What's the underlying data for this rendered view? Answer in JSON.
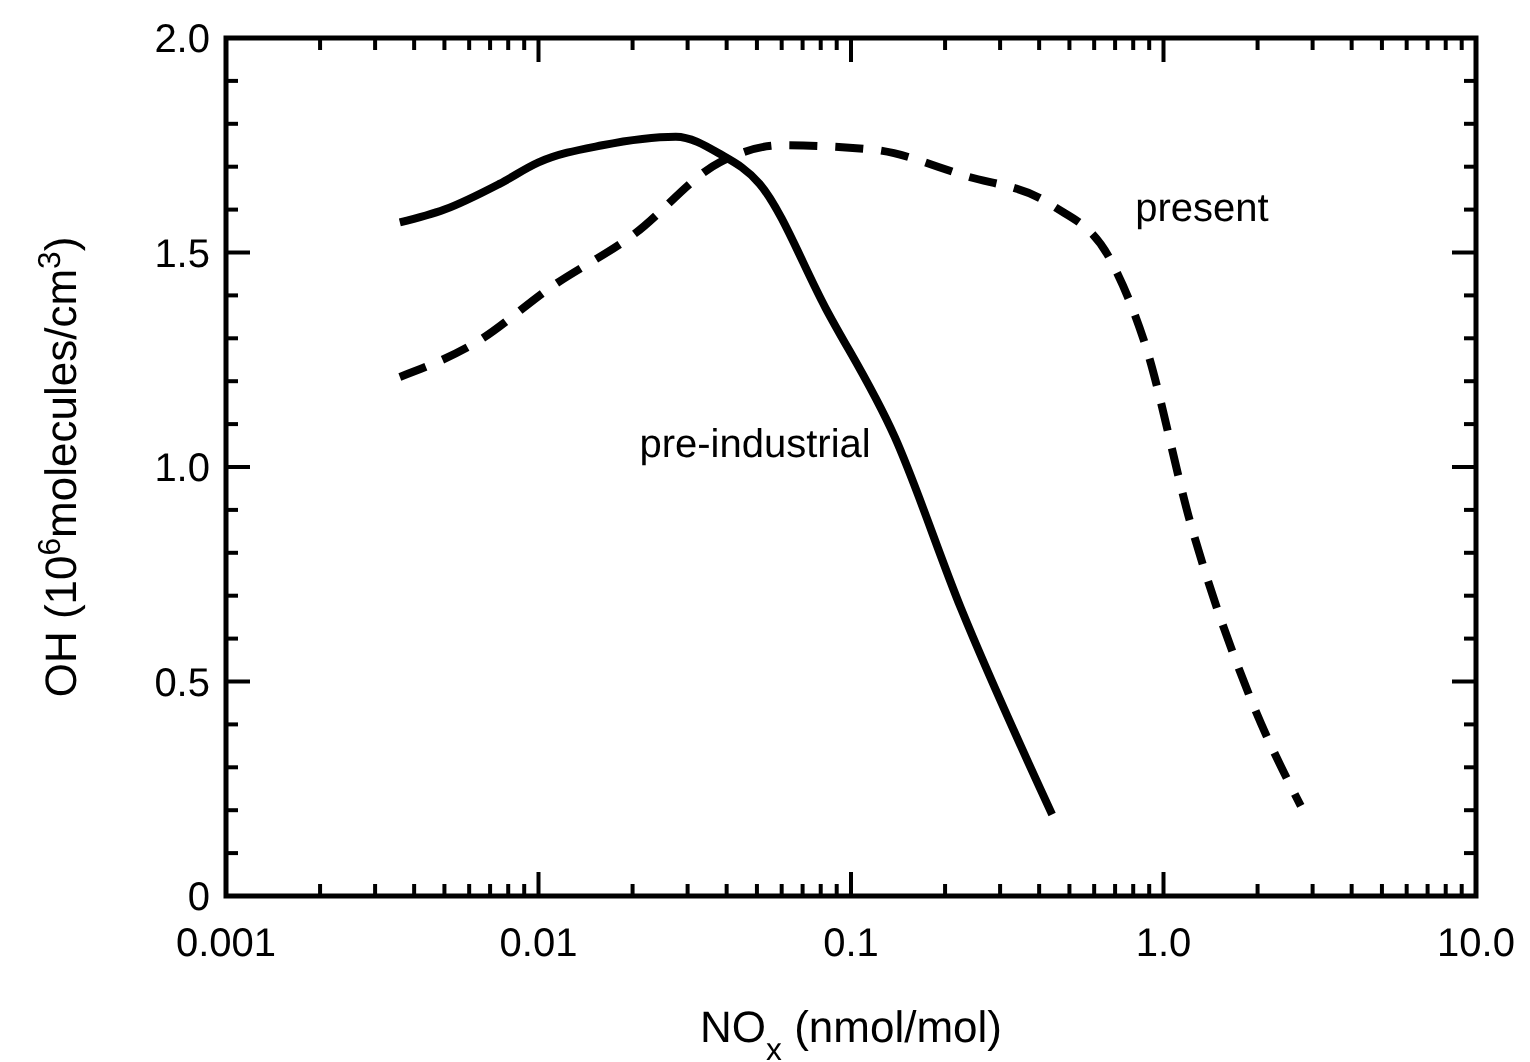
{
  "chart_data": {
    "type": "line",
    "xlabel": "NO$_{x}$ (nmol/mol)",
    "ylabel": "OH (10$^{6}$molecules/cm$^{3}$)",
    "log": "x",
    "xlim": [
      0.001,
      10
    ],
    "ylim": [
      0,
      2
    ],
    "xticks": [
      {
        "value": 0.001,
        "label": "0.001"
      },
      {
        "value": 0.002,
        "label": null
      },
      {
        "value": 0.003,
        "label": null
      },
      {
        "value": 0.004,
        "label": null
      },
      {
        "value": 0.005,
        "label": null
      },
      {
        "value": 0.006,
        "label": null
      },
      {
        "value": 0.007,
        "label": null
      },
      {
        "value": 0.008,
        "label": null
      },
      {
        "value": 0.009,
        "label": null
      },
      {
        "value": 0.01,
        "label": "0.01"
      },
      {
        "value": 0.02,
        "label": null
      },
      {
        "value": 0.03,
        "label": null
      },
      {
        "value": 0.04,
        "label": null
      },
      {
        "value": 0.05,
        "label": null
      },
      {
        "value": 0.06,
        "label": null
      },
      {
        "value": 0.07,
        "label": null
      },
      {
        "value": 0.08,
        "label": null
      },
      {
        "value": 0.09,
        "label": null
      },
      {
        "value": 0.1,
        "label": "0.1"
      },
      {
        "value": 0.2,
        "label": null
      },
      {
        "value": 0.3,
        "label": null
      },
      {
        "value": 0.4,
        "label": null
      },
      {
        "value": 0.5,
        "label": null
      },
      {
        "value": 0.6,
        "label": null
      },
      {
        "value": 0.7,
        "label": null
      },
      {
        "value": 0.8,
        "label": null
      },
      {
        "value": 0.9,
        "label": null
      },
      {
        "value": 1,
        "label": "1.0"
      },
      {
        "value": 2,
        "label": null
      },
      {
        "value": 3,
        "label": null
      },
      {
        "value": 4,
        "label": null
      },
      {
        "value": 5,
        "label": null
      },
      {
        "value": 6,
        "label": null
      },
      {
        "value": 7,
        "label": null
      },
      {
        "value": 8,
        "label": null
      },
      {
        "value": 9,
        "label": null
      },
      {
        "value": 10,
        "label": "10.0"
      }
    ],
    "yticks": [
      0,
      {
        "value": 0.1,
        "label": null
      },
      {
        "value": 0.2,
        "label": null
      },
      {
        "value": 0.3,
        "label": null
      },
      {
        "value": 0.4,
        "label": null
      },
      0.5,
      {
        "value": 0.6,
        "label": null
      },
      {
        "value": 0.7,
        "label": null
      },
      {
        "value": 0.8,
        "label": null
      },
      {
        "value": 0.9,
        "label": null
      },
      {
        "value": 1,
        "label": "1.0"
      },
      {
        "value": 1.1,
        "label": null
      },
      {
        "value": 1.2,
        "label": null
      },
      {
        "value": 1.3,
        "label": null
      },
      {
        "value": 1.4,
        "label": null
      },
      1.5,
      {
        "value": 1.6,
        "label": null
      },
      {
        "value": 1.7,
        "label": null
      },
      {
        "value": 1.8,
        "label": null
      },
      {
        "value": 1.9,
        "label": null
      },
      {
        "value": 2,
        "label": "2.0"
      }
    ],
    "grid": false,
    "series": [
      {
        "name": "pre-industrial",
        "color": "#000000",
        "line_style": "solid",
        "x": [
          0.0036,
          0.005,
          0.0075,
          0.01,
          0.016,
          0.0275,
          0.038,
          0.051,
          0.083,
          0.138,
          0.225,
          0.44
        ],
        "values": [
          1.57,
          1.6,
          1.66,
          1.71,
          1.75,
          1.77,
          1.73,
          1.66,
          1.37,
          1.07,
          0.67,
          0.19
        ]
      },
      {
        "name": "present",
        "color": "#000000",
        "line_style": "dashed",
        "x": [
          0.0036,
          0.0063,
          0.011,
          0.02,
          0.038,
          0.06,
          0.117,
          0.229,
          0.44,
          0.68,
          0.87,
          1.23,
          1.9,
          2.75
        ],
        "values": [
          1.21,
          1.29,
          1.42,
          1.54,
          1.71,
          1.75,
          1.74,
          1.68,
          1.61,
          1.48,
          1.29,
          0.86,
          0.46,
          0.21
        ]
      }
    ]
  }
}
